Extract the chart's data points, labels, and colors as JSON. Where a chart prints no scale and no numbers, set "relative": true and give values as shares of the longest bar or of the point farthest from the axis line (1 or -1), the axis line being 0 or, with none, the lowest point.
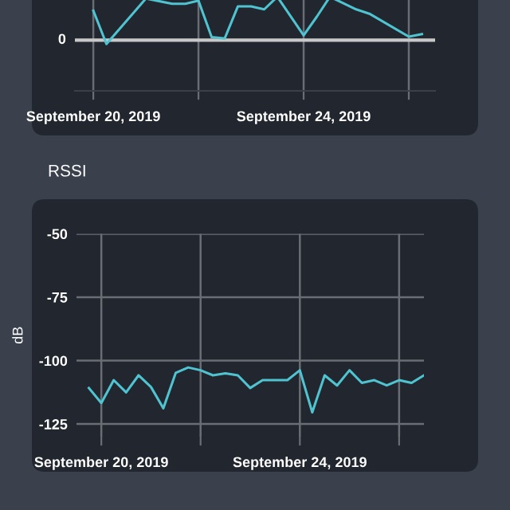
{
  "chart_data": [
    {
      "type": "line",
      "relative": true,
      "grid": "x",
      "annotations": [
        "0"
      ],
      "series": [
        {
          "color": "#4fc3cf",
          "x": [
            "2019-09-20T00:00",
            "2019-09-20T06:00",
            "2019-09-21T00:00",
            "2019-09-21T06:00",
            "2019-09-21T12:00",
            "2019-09-21T18:00",
            "2019-09-22T00:00",
            "2019-09-22T06:00",
            "2019-09-22T12:00",
            "2019-09-22T18:00",
            "2019-09-23T00:00",
            "2019-09-23T06:00",
            "2019-09-23T12:00",
            "2019-09-24T00:00",
            "2019-09-24T06:00",
            "2019-09-24T12:00",
            "2019-09-25T00:00",
            "2019-09-25T06:00",
            "2019-09-26T00:00",
            "2019-09-26T06:00"
          ],
          "values": [
            0.68,
            -0.09,
            0.96,
            0.9,
            0.84,
            0.84,
            0.91,
            0.07,
            0.04,
            0.78,
            0.78,
            0.71,
            1,
            0.11,
            0.54,
            1,
            0.71,
            0.61,
            0.08,
            0.14
          ]
        }
      ],
      "xlim": [
        "2019-09-19T15:36",
        "2019-09-26T12:00"
      ],
      "xticks": [
        {
          "value": "2019-09-20",
          "label": "September 20, 2019"
        },
        {
          "value": "2019-09-22",
          "label": null
        },
        {
          "value": "2019-09-24",
          "label": "September 24, 2019"
        },
        {
          "value": "2019-09-26",
          "label": null
        }
      ]
    },
    {
      "type": "line",
      "title": "RSSI",
      "ylabel": "dB",
      "grid": true,
      "x": [
        "2019-09-19T18:00",
        "2019-09-20T00:00",
        "2019-09-20T06:00",
        "2019-09-20T12:00",
        "2019-09-20T18:00",
        "2019-09-21T00:00",
        "2019-09-21T06:00",
        "2019-09-21T12:00",
        "2019-09-21T18:00",
        "2019-09-22T00:00",
        "2019-09-22T06:00",
        "2019-09-22T12:00",
        "2019-09-22T18:00",
        "2019-09-23T00:00",
        "2019-09-23T06:00",
        "2019-09-23T12:00",
        "2019-09-23T18:00",
        "2019-09-24T00:00",
        "2019-09-24T06:00",
        "2019-09-24T12:00",
        "2019-09-24T18:00",
        "2019-09-25T00:00",
        "2019-09-25T06:00",
        "2019-09-25T12:00",
        "2019-09-25T18:00",
        "2019-09-26T00:00",
        "2019-09-26T06:00",
        "2019-09-26T12:00"
      ],
      "series": [
        {
          "color": "#4fc3cf",
          "values": [
            -110.8,
            -116.7,
            -107.7,
            -112.5,
            -105.8,
            -110.4,
            -118.8,
            -104.8,
            -102.7,
            -103.8,
            -105.8,
            -105,
            -105.8,
            -110.8,
            -107.7,
            -107.7,
            -107.7,
            -103.8,
            -120.4,
            -105.8,
            -109.8,
            -103.8,
            -108.8,
            -107.7,
            -109.8,
            -107.7,
            -108.8,
            -105.8
          ]
        }
      ],
      "xlim": [
        "2019-09-19T12:00",
        "2019-09-26T12:00"
      ],
      "xticks": [
        {
          "value": "2019-09-20",
          "label": "September 20, 2019"
        },
        {
          "value": "2019-09-22",
          "label": null
        },
        {
          "value": "2019-09-24",
          "label": "September 24, 2019"
        },
        {
          "value": "2019-09-26",
          "label": null
        }
      ],
      "ylim": [
        -130,
        -50
      ],
      "yticks": [
        -50,
        -75,
        -100,
        -125
      ]
    }
  ]
}
